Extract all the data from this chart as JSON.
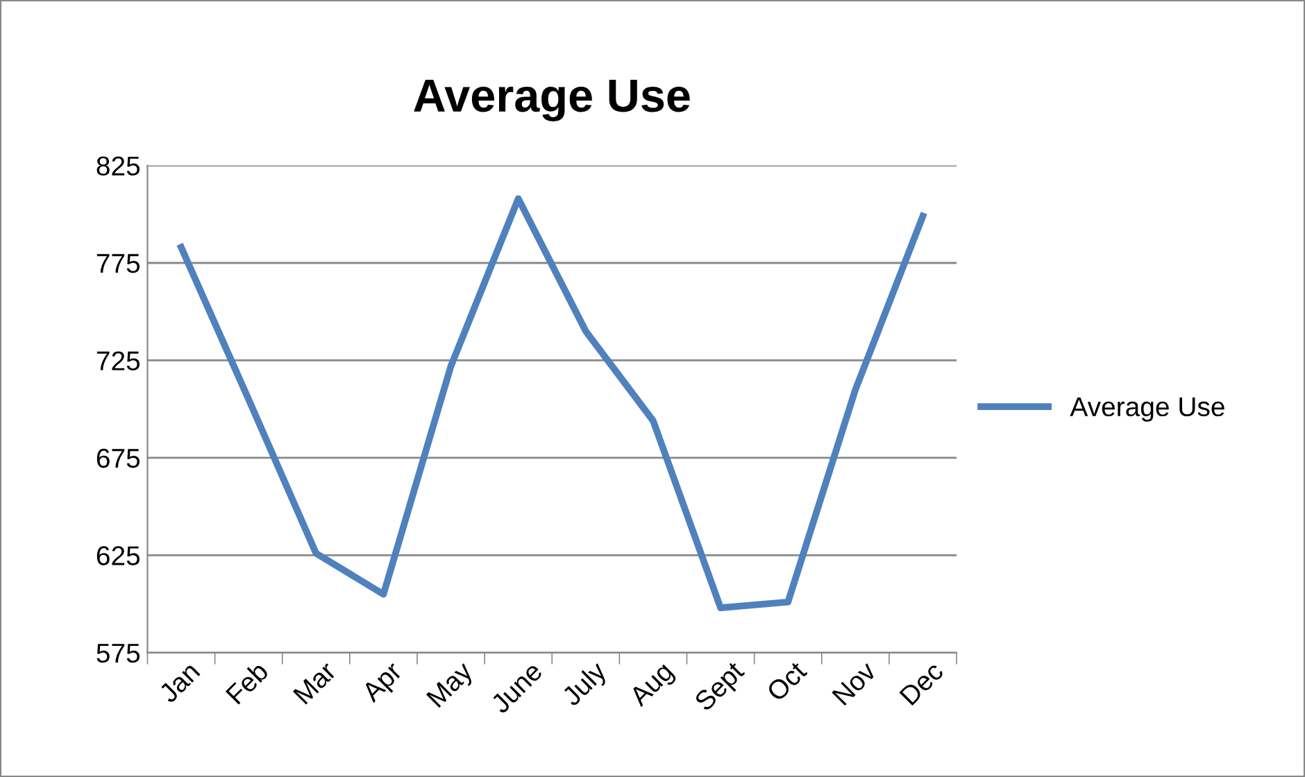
{
  "chart_data": {
    "type": "line",
    "title": "Average Use",
    "categories": [
      "Jan",
      "Feb",
      "Mar",
      "Apr",
      "May",
      "June",
      "July",
      "Aug",
      "Sept",
      "Oct",
      "Nov",
      "Dec"
    ],
    "series": [
      {
        "name": "Average Use",
        "color": "#4f81bd",
        "values": [
          783,
          705,
          626,
          605,
          722,
          808,
          740,
          694,
          598,
          601,
          710,
          799
        ]
      }
    ],
    "ylim": [
      575,
      825
    ],
    "yticks": [
      575,
      625,
      675,
      725,
      775,
      825
    ],
    "grid": "y",
    "legend": "right",
    "marker": "none",
    "line_style": "solid"
  }
}
